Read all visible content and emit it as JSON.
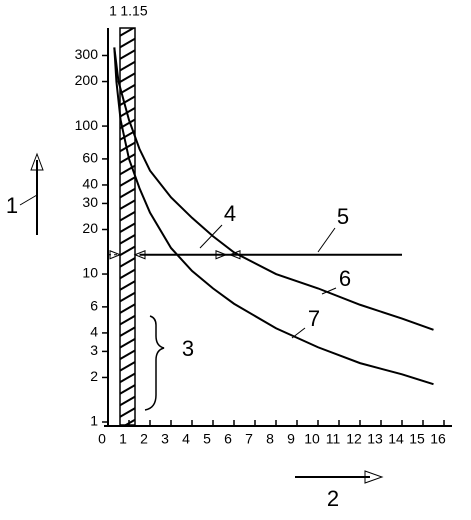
{
  "chart_data": {
    "type": "line",
    "log_y": true,
    "xlim": [
      0,
      16
    ],
    "xticks": [
      0,
      1,
      2,
      3,
      4,
      5,
      6,
      7,
      8,
      9,
      10,
      11,
      12,
      13,
      14,
      15,
      16
    ],
    "ylim": [
      1,
      400
    ],
    "yticks": [
      1,
      2,
      3,
      4,
      6,
      10,
      20,
      30,
      40,
      60,
      100,
      200,
      300
    ],
    "band_labels": [
      "1",
      "1.15"
    ],
    "reference_numerals": [
      "1",
      "2",
      "3",
      "4",
      "5",
      "6",
      "7"
    ],
    "series": [
      {
        "color": "#000000",
        "x": [
          0.3,
          0.5,
          1,
          1.5,
          2,
          3,
          4,
          5,
          6,
          8,
          10,
          12,
          14,
          15.5
        ],
        "values": [
          340,
          200,
          110,
          70,
          50,
          33,
          24,
          18,
          14,
          10,
          8,
          6.2,
          5,
          4.2
        ]
      },
      {
        "color": "#000000",
        "x": [
          0.3,
          0.4,
          0.6,
          1,
          1.5,
          2,
          3,
          4,
          5,
          6,
          8,
          10,
          12,
          14,
          15.5
        ],
        "values": [
          340,
          200,
          110,
          60,
          38,
          26,
          15,
          10.5,
          8,
          6.3,
          4.3,
          3.2,
          2.5,
          2.1,
          1.8
        ]
      },
      {
        "color": "#000000",
        "x": [
          1.5,
          14
        ],
        "values": [
          13.5,
          13.5
        ]
      }
    ]
  }
}
